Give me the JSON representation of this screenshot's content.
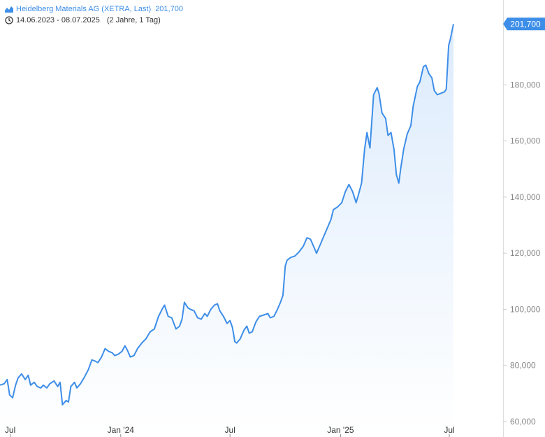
{
  "legend": {
    "instrument": "Heidelberg Materials AG (XETRA, Last)",
    "last_value": "201,700",
    "date_range": "14.06.2023 - 08.07.2025",
    "period": "(2 Jahre, 1 Tag)",
    "icons": [
      "area-chart-icon",
      "clock-icon"
    ]
  },
  "price_label": "201,700",
  "colors": {
    "line": "#3d8ee8",
    "area_top": "#dcebfc",
    "axis_text": "#888888",
    "axis_line": "#dddddd",
    "label_bg": "#3d8ee8"
  },
  "chart_data": {
    "type": "area",
    "title": "Heidelberg Materials AG (XETRA, Last)",
    "xlabel": "",
    "ylabel": "",
    "ylim": [
      56,
      209
    ],
    "xlim": [
      "2023-06-14",
      "2025-07-08"
    ],
    "x_ticks": [
      {
        "date": "2023-07-01",
        "label": "Jul"
      },
      {
        "date": "2024-01-01",
        "label": "Jan '24"
      },
      {
        "date": "2024-07-01",
        "label": "Jul"
      },
      {
        "date": "2025-01-01",
        "label": "Jan '25"
      },
      {
        "date": "2025-07-01",
        "label": "Jul"
      }
    ],
    "y_ticks": [
      {
        "value": 60,
        "label": "60,000"
      },
      {
        "value": 80,
        "label": "80,000"
      },
      {
        "value": 100,
        "label": "100,000"
      },
      {
        "value": 120,
        "label": "120,000"
      },
      {
        "value": 140,
        "label": "140,000"
      },
      {
        "value": 160,
        "label": "160,000"
      },
      {
        "value": 180,
        "label": "180,000"
      }
    ],
    "grid": false,
    "legend_position": "top-left",
    "series": [
      {
        "name": "Heidelberg Materials AG (XETRA, Last)",
        "points": [
          [
            "2023-06-14",
            73.0
          ],
          [
            "2023-06-21",
            73.5
          ],
          [
            "2023-06-26",
            75.0
          ],
          [
            "2023-06-30",
            69.5
          ],
          [
            "2023-07-05",
            68.5
          ],
          [
            "2023-07-10",
            73.0
          ],
          [
            "2023-07-14",
            75.5
          ],
          [
            "2023-07-20",
            77.0
          ],
          [
            "2023-07-26",
            75.0
          ],
          [
            "2023-07-31",
            76.5
          ],
          [
            "2023-08-04",
            73.0
          ],
          [
            "2023-08-10",
            74.0
          ],
          [
            "2023-08-15",
            72.5
          ],
          [
            "2023-08-21",
            72.0
          ],
          [
            "2023-08-25",
            73.0
          ],
          [
            "2023-08-31",
            72.0
          ],
          [
            "2023-09-05",
            73.5
          ],
          [
            "2023-09-12",
            74.5
          ],
          [
            "2023-09-18",
            72.5
          ],
          [
            "2023-09-22",
            74.0
          ],
          [
            "2023-09-26",
            66.0
          ],
          [
            "2023-10-02",
            67.5
          ],
          [
            "2023-10-06",
            67.0
          ],
          [
            "2023-10-10",
            72.5
          ],
          [
            "2023-10-16",
            74.0
          ],
          [
            "2023-10-20",
            72.0
          ],
          [
            "2023-10-26",
            73.5
          ],
          [
            "2023-11-02",
            76.0
          ],
          [
            "2023-11-08",
            78.5
          ],
          [
            "2023-11-14",
            82.0
          ],
          [
            "2023-11-20",
            81.5
          ],
          [
            "2023-11-24",
            81.0
          ],
          [
            "2023-11-30",
            83.0
          ],
          [
            "2023-12-06",
            86.0
          ],
          [
            "2023-12-12",
            85.0
          ],
          [
            "2023-12-18",
            84.5
          ],
          [
            "2023-12-22",
            83.5
          ],
          [
            "2023-12-28",
            84.0
          ],
          [
            "2024-01-03",
            85.0
          ],
          [
            "2024-01-08",
            87.0
          ],
          [
            "2024-01-12",
            85.5
          ],
          [
            "2024-01-17",
            83.0
          ],
          [
            "2024-01-23",
            83.5
          ],
          [
            "2024-01-29",
            86.0
          ],
          [
            "2024-02-05",
            88.0
          ],
          [
            "2024-02-12",
            89.5
          ],
          [
            "2024-02-19",
            92.0
          ],
          [
            "2024-02-26",
            93.0
          ],
          [
            "2024-03-04",
            97.5
          ],
          [
            "2024-03-11",
            100.5
          ],
          [
            "2024-03-14",
            101.5
          ],
          [
            "2024-03-20",
            97.5
          ],
          [
            "2024-03-26",
            97.0
          ],
          [
            "2024-04-02",
            93.0
          ],
          [
            "2024-04-08",
            94.0
          ],
          [
            "2024-04-12",
            96.5
          ],
          [
            "2024-04-16",
            102.5
          ],
          [
            "2024-04-22",
            100.5
          ],
          [
            "2024-04-26",
            100.0
          ],
          [
            "2024-05-02",
            99.5
          ],
          [
            "2024-05-08",
            97.0
          ],
          [
            "2024-05-14",
            96.5
          ],
          [
            "2024-05-20",
            98.5
          ],
          [
            "2024-05-24",
            97.5
          ],
          [
            "2024-05-30",
            100.0
          ],
          [
            "2024-06-05",
            101.5
          ],
          [
            "2024-06-10",
            102.0
          ],
          [
            "2024-06-14",
            99.5
          ],
          [
            "2024-06-20",
            97.5
          ],
          [
            "2024-06-26",
            95.0
          ],
          [
            "2024-07-01",
            96.0
          ],
          [
            "2024-07-05",
            93.5
          ],
          [
            "2024-07-09",
            88.5
          ],
          [
            "2024-07-12",
            88.0
          ],
          [
            "2024-07-18",
            89.5
          ],
          [
            "2024-07-24",
            92.5
          ],
          [
            "2024-07-29",
            94.0
          ],
          [
            "2024-08-02",
            91.5
          ],
          [
            "2024-08-07",
            92.0
          ],
          [
            "2024-08-13",
            95.5
          ],
          [
            "2024-08-19",
            97.5
          ],
          [
            "2024-08-26",
            98.0
          ],
          [
            "2024-09-02",
            98.5
          ],
          [
            "2024-09-06",
            97.0
          ],
          [
            "2024-09-12",
            97.5
          ],
          [
            "2024-09-18",
            100.0
          ],
          [
            "2024-09-23",
            102.5
          ],
          [
            "2024-09-27",
            105.0
          ],
          [
            "2024-10-01",
            115.5
          ],
          [
            "2024-10-04",
            117.5
          ],
          [
            "2024-10-10",
            118.5
          ],
          [
            "2024-10-17",
            119.0
          ],
          [
            "2024-10-24",
            120.5
          ],
          [
            "2024-10-31",
            122.5
          ],
          [
            "2024-11-06",
            125.5
          ],
          [
            "2024-11-12",
            125.0
          ],
          [
            "2024-11-18",
            122.0
          ],
          [
            "2024-11-22",
            120.0
          ],
          [
            "2024-11-28",
            123.0
          ],
          [
            "2024-12-04",
            126.0
          ],
          [
            "2024-12-10",
            129.0
          ],
          [
            "2024-12-16",
            132.0
          ],
          [
            "2024-12-20",
            135.5
          ],
          [
            "2024-12-27",
            136.5
          ],
          [
            "2025-01-03",
            138.0
          ],
          [
            "2025-01-09",
            142.0
          ],
          [
            "2025-01-15",
            144.5
          ],
          [
            "2025-01-21",
            142.0
          ],
          [
            "2025-01-27",
            138.0
          ],
          [
            "2025-01-31",
            141.0
          ],
          [
            "2025-02-05",
            145.0
          ],
          [
            "2025-02-10",
            157.0
          ],
          [
            "2025-02-14",
            163.0
          ],
          [
            "2025-02-19",
            157.5
          ],
          [
            "2025-02-25",
            176.5
          ],
          [
            "2025-03-03",
            179.0
          ],
          [
            "2025-03-06",
            177.0
          ],
          [
            "2025-03-11",
            170.0
          ],
          [
            "2025-03-17",
            168.0
          ],
          [
            "2025-03-21",
            162.0
          ],
          [
            "2025-03-26",
            163.0
          ],
          [
            "2025-03-31",
            157.0
          ],
          [
            "2025-04-04",
            148.0
          ],
          [
            "2025-04-08",
            145.0
          ],
          [
            "2025-04-11",
            150.0
          ],
          [
            "2025-04-16",
            157.0
          ],
          [
            "2025-04-22",
            162.5
          ],
          [
            "2025-04-28",
            165.5
          ],
          [
            "2025-05-02",
            172.5
          ],
          [
            "2025-05-06",
            176.5
          ],
          [
            "2025-05-09",
            179.5
          ],
          [
            "2025-05-13",
            181.0
          ],
          [
            "2025-05-19",
            186.5
          ],
          [
            "2025-05-23",
            187.0
          ],
          [
            "2025-05-28",
            184.0
          ],
          [
            "2025-06-02",
            182.5
          ],
          [
            "2025-06-06",
            178.0
          ],
          [
            "2025-06-11",
            176.5
          ],
          [
            "2025-06-17",
            177.0
          ],
          [
            "2025-06-23",
            177.5
          ],
          [
            "2025-06-26",
            178.5
          ],
          [
            "2025-06-30",
            194.0
          ],
          [
            "2025-07-03",
            196.5
          ],
          [
            "2025-07-08",
            201.7
          ]
        ]
      }
    ]
  }
}
